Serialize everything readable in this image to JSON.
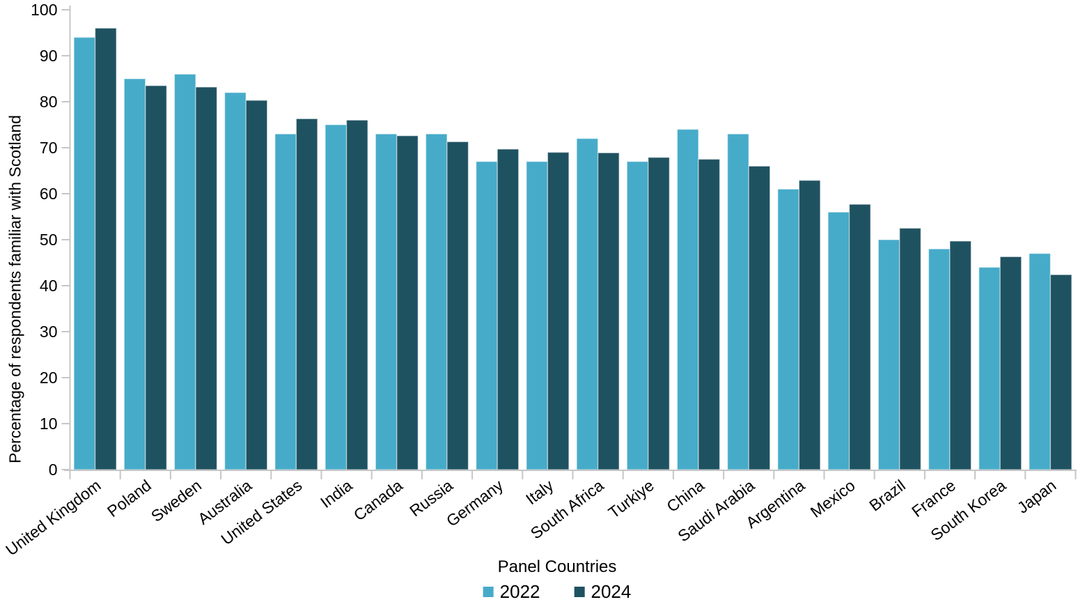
{
  "chart_data": {
    "type": "bar",
    "title": "",
    "xlabel": "Panel Countries",
    "ylabel": "Percentage of respondents familiar with Scotland",
    "ylim": [
      0,
      100
    ],
    "ytick_step": 10,
    "yticks": [
      "0",
      "10",
      "20",
      "30",
      "40",
      "50",
      "60",
      "70",
      "80",
      "90",
      "100"
    ],
    "grid": false,
    "legend_position": "bottom",
    "axis_color": "#C6C6C6",
    "text_color": "#000000",
    "categories": [
      "United Kingdom",
      "Poland",
      "Sweden",
      "Australia",
      "United States",
      "India",
      "Canada",
      "Russia",
      "Germany",
      "Italy",
      "South Africa",
      "Turkiye",
      "China",
      "Saudi Arabia",
      "Argentina",
      "Mexico",
      "Brazil",
      "France",
      "South Korea",
      "Japan"
    ],
    "series": [
      {
        "name": "2022",
        "color": "#46ABC9",
        "values": [
          94,
          85,
          86,
          82,
          73,
          75,
          73,
          73,
          67,
          67,
          72,
          67,
          74,
          73,
          61,
          56,
          50,
          48,
          44,
          47
        ]
      },
      {
        "name": "2024",
        "color": "#1F5261",
        "values": [
          96,
          83.5,
          83.2,
          80.3,
          76.3,
          76,
          72.6,
          71.3,
          69.7,
          69,
          68.9,
          67.9,
          67.5,
          66,
          62.9,
          57.7,
          52.5,
          49.7,
          46.3,
          42.4
        ]
      }
    ]
  }
}
